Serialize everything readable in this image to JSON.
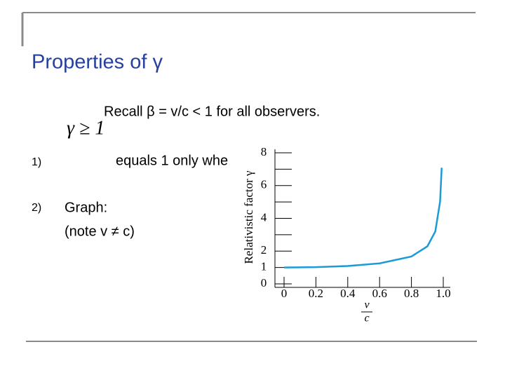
{
  "header": {
    "title": "Properties of γ"
  },
  "formula": "γ ≥ 1",
  "recall": "Recall β = v/c < 1 for all observers.",
  "items": [
    {
      "number": "1)",
      "text": "equals 1 only whe"
    },
    {
      "number": "2)",
      "text": "Graph:",
      "note": "(note v ≠ c)"
    }
  ],
  "chart_data": {
    "type": "line",
    "y_label": "Relativistic factor γ",
    "x_label": {
      "numerator": "v",
      "denominator": "c"
    },
    "x": [
      0,
      0.2,
      0.4,
      0.6,
      0.8,
      0.9,
      0.95,
      0.98,
      0.99
    ],
    "series": [
      {
        "color": "#1a9bd7",
        "values": [
          1,
          1.02,
          1.09,
          1.25,
          1.67,
          2.29,
          3.2,
          5.03,
          7.09
        ]
      }
    ],
    "xlim": [
      0,
      1.0
    ],
    "ylim": [
      0,
      8
    ],
    "xticks": [
      0,
      0.2,
      0.4,
      0.6,
      0.8,
      {
        "value": 1,
        "label": "1.0"
      }
    ],
    "yticks": [
      0,
      1,
      2,
      4,
      6,
      8
    ],
    "yminor": [
      3,
      5,
      7
    ]
  }
}
